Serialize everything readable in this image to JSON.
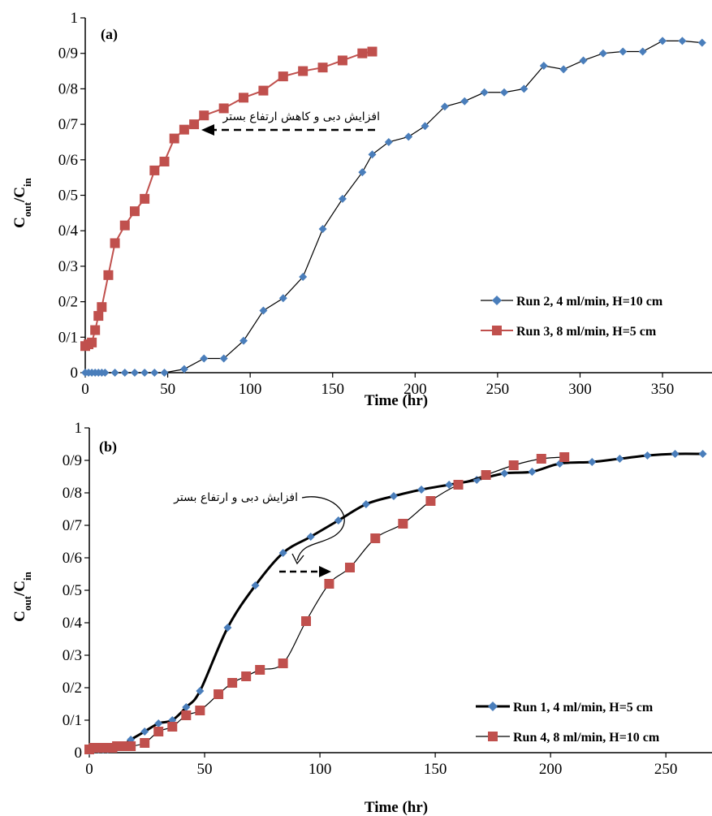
{
  "chart_data": [
    {
      "type": "line",
      "panel_label": "(a)",
      "xlabel": "Time (hr)",
      "ylabel": {
        "main": "C",
        "sub1": "out",
        "mid": "/C",
        "sub2": "in"
      },
      "xlim": [
        0,
        380
      ],
      "ylim": [
        0,
        1
      ],
      "xticks": [
        "0",
        "50",
        "100",
        "150",
        "200",
        "250",
        "300",
        "350"
      ],
      "yticks": [
        "0",
        "0/1",
        "0/2",
        "0/3",
        "0/4",
        "0/5",
        "0/6",
        "0/7",
        "0/8",
        "0/9",
        "1"
      ],
      "annotation": "افزایش دبی و کاهش ارتفاع بستر",
      "legend_position": "bottom-right",
      "series": [
        {
          "name": "Run 2, 4 ml/min, H=10 cm",
          "marker": "diamond",
          "color": "#4a7ebb",
          "line_color": "#000000",
          "x": [
            0,
            2,
            4,
            6,
            8,
            10,
            12,
            18,
            24,
            30,
            36,
            42,
            48,
            60,
            72,
            84,
            96,
            108,
            120,
            132,
            144,
            156,
            168,
            174,
            184,
            196,
            206,
            218,
            230,
            242,
            254,
            266,
            278,
            290,
            302,
            314,
            326,
            338,
            350,
            362,
            374
          ],
          "values": [
            0,
            0,
            0,
            0,
            0,
            0,
            0,
            0,
            0,
            0,
            0,
            0,
            0,
            0.01,
            0.04,
            0.04,
            0.09,
            0.175,
            0.21,
            0.27,
            0.405,
            0.49,
            0.565,
            0.615,
            0.65,
            0.665,
            0.695,
            0.75,
            0.765,
            0.79,
            0.79,
            0.8,
            0.865,
            0.855,
            0.88,
            0.9,
            0.905,
            0.905,
            0.935,
            0.935,
            0.93
          ]
        },
        {
          "name": "Run 3, 8 ml/min, H=5 cm",
          "marker": "square",
          "color": "#c0504d",
          "line_color": "#c0504d",
          "x": [
            0,
            2,
            4,
            6,
            8,
            10,
            14,
            18,
            24,
            30,
            36,
            42,
            48,
            54,
            60,
            66,
            72,
            84,
            96,
            108,
            120,
            132,
            144,
            156,
            168,
            174
          ],
          "values": [
            0.075,
            0.08,
            0.085,
            0.12,
            0.16,
            0.185,
            0.275,
            0.365,
            0.415,
            0.455,
            0.49,
            0.57,
            0.595,
            0.66,
            0.685,
            0.7,
            0.725,
            0.745,
            0.775,
            0.795,
            0.835,
            0.85,
            0.86,
            0.88,
            0.9,
            0.905
          ]
        }
      ]
    },
    {
      "type": "line",
      "panel_label": "(b)",
      "xlabel": "Time (hr)",
      "ylabel": {
        "main": "C",
        "sub1": "out",
        "mid": "/C",
        "sub2": "in"
      },
      "xlim": [
        0,
        270
      ],
      "ylim": [
        0,
        1
      ],
      "xticks": [
        "0",
        "50",
        "100",
        "150",
        "200",
        "250"
      ],
      "yticks": [
        "0",
        "0/1",
        "0/2",
        "0/3",
        "0/4",
        "0/5",
        "0/6",
        "0/7",
        "0/8",
        "0/9",
        "1"
      ],
      "annotation": "افزایش دبی و ارتفاع بستر",
      "legend_position": "bottom-right",
      "series": [
        {
          "name": "Run 1, 4 ml/min, H=5 cm",
          "marker": "diamond",
          "color": "#4a7ebb",
          "line_color": "#000000",
          "x": [
            0,
            2,
            4,
            6,
            8,
            10,
            12,
            14,
            18,
            24,
            30,
            36,
            42,
            48,
            60,
            72,
            84,
            96,
            108,
            120,
            132,
            144,
            156,
            168,
            180,
            192,
            204,
            218,
            230,
            242,
            254,
            266
          ],
          "values": [
            0.005,
            0.01,
            0.01,
            0.01,
            0.01,
            0.015,
            0.015,
            0.02,
            0.04,
            0.065,
            0.09,
            0.1,
            0.14,
            0.19,
            0.385,
            0.515,
            0.615,
            0.665,
            0.715,
            0.765,
            0.79,
            0.81,
            0.825,
            0.84,
            0.86,
            0.865,
            0.89,
            0.895,
            0.905,
            0.915,
            0.92,
            0.92
          ]
        },
        {
          "name": "Run 4, 8 ml/min, H=10 cm",
          "marker": "square",
          "color": "#c0504d",
          "line_color": "#000000",
          "x": [
            0,
            2,
            4,
            6,
            8,
            10,
            12,
            14,
            18,
            24,
            30,
            36,
            42,
            48,
            56,
            62,
            68,
            74,
            84,
            94,
            104,
            113,
            124,
            136,
            148,
            160,
            172,
            184,
            196,
            206
          ],
          "values": [
            0.01,
            0.015,
            0.015,
            0.015,
            0.015,
            0.015,
            0.02,
            0.02,
            0.02,
            0.03,
            0.065,
            0.08,
            0.115,
            0.13,
            0.18,
            0.215,
            0.235,
            0.255,
            0.275,
            0.405,
            0.52,
            0.57,
            0.66,
            0.705,
            0.775,
            0.825,
            0.855,
            0.885,
            0.905,
            0.91
          ]
        }
      ]
    }
  ]
}
